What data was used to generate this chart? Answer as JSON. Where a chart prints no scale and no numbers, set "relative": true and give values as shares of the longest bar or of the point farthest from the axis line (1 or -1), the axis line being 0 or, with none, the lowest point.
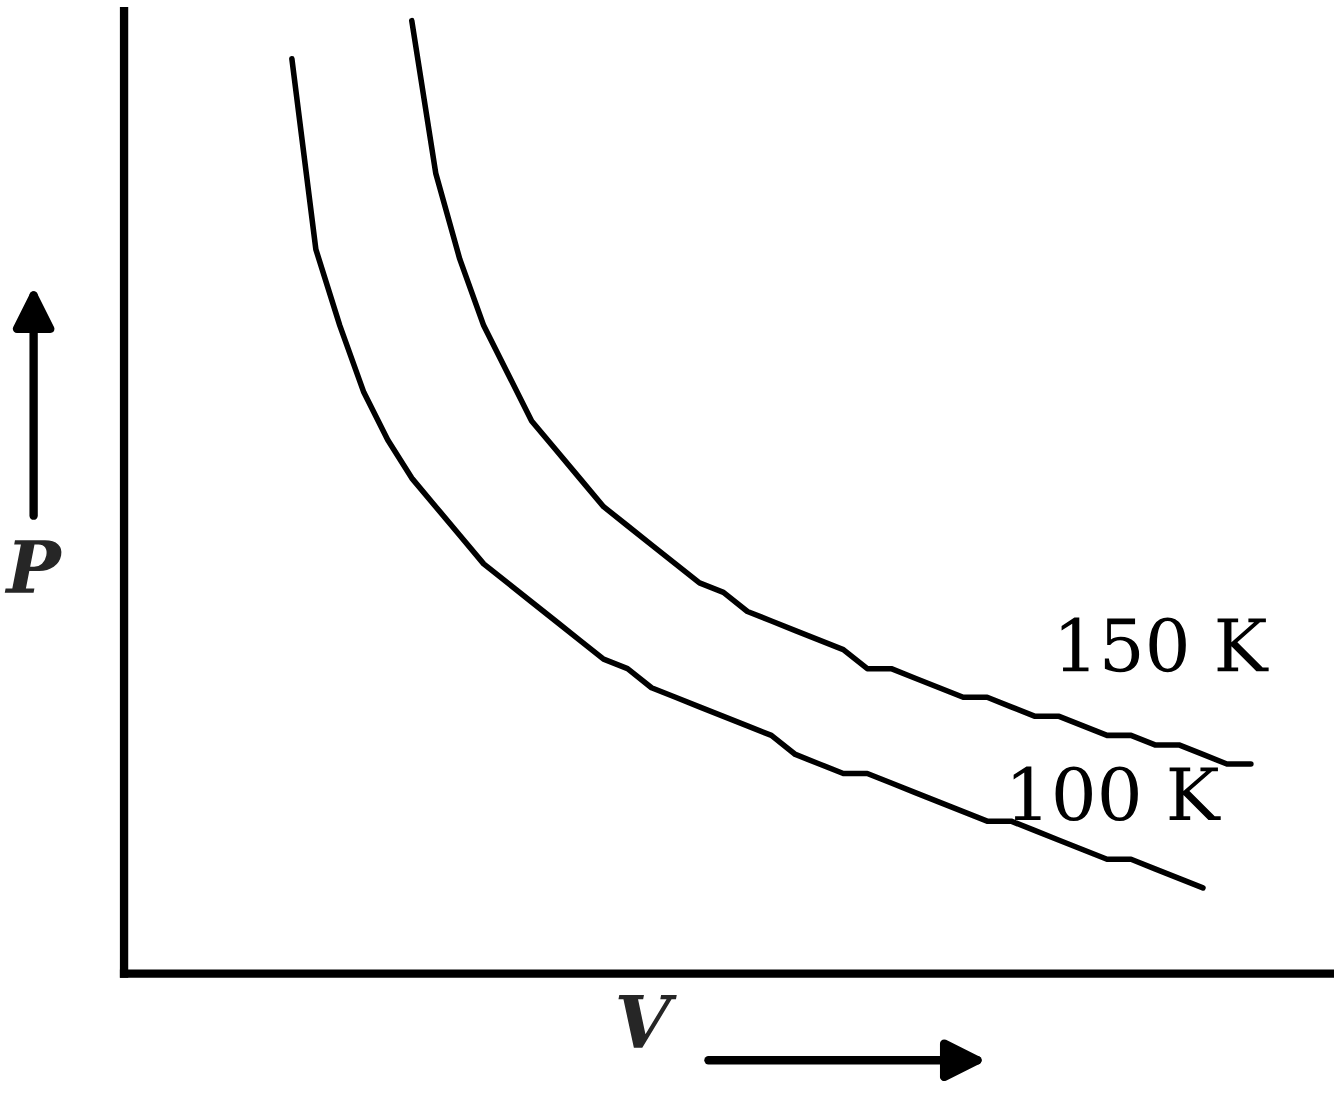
{
  "chart_data": {
    "type": "line",
    "relative": true,
    "xlabel": "V",
    "ylabel": "P",
    "legend": false,
    "grid": false,
    "categories": [
      null,
      null,
      null,
      null,
      null,
      null,
      null,
      null,
      null,
      null,
      null,
      null,
      null,
      null,
      null,
      null,
      null,
      null,
      null,
      null,
      null,
      null,
      null,
      null,
      null,
      null,
      null,
      null,
      null,
      null,
      null,
      null,
      null,
      null,
      null,
      null,
      null,
      null,
      null,
      null,
      null
    ],
    "series": [
      {
        "name": "150 K",
        "color": "#000000",
        "values": [
          null,
          null,
          null,
          null,
          null,
          1.0,
          0.84,
          0.75,
          0.68,
          0.63,
          0.58,
          0.55,
          0.52,
          0.49,
          0.47,
          0.45,
          0.43,
          0.41,
          0.4,
          0.38,
          0.37,
          0.36,
          0.35,
          0.34,
          0.32,
          0.32,
          0.31,
          0.3,
          0.29,
          0.29,
          0.28,
          0.27,
          0.27,
          0.26,
          0.25,
          0.25,
          0.24,
          0.24,
          0.23,
          0.22,
          0.22
        ]
      },
      {
        "name": "100 K",
        "color": "#000000",
        "values": [
          0.96,
          0.76,
          0.68,
          0.61,
          0.56,
          0.52,
          0.49,
          0.46,
          0.43,
          0.41,
          0.39,
          0.37,
          0.35,
          0.33,
          0.32,
          0.3,
          0.29,
          0.28,
          0.27,
          0.26,
          0.25,
          0.23,
          0.22,
          0.21,
          0.21,
          0.2,
          0.19,
          0.18,
          0.17,
          0.16,
          0.16,
          0.15,
          0.14,
          0.13,
          0.12,
          0.12,
          0.11,
          0.1,
          0.09,
          null,
          null
        ]
      }
    ]
  }
}
